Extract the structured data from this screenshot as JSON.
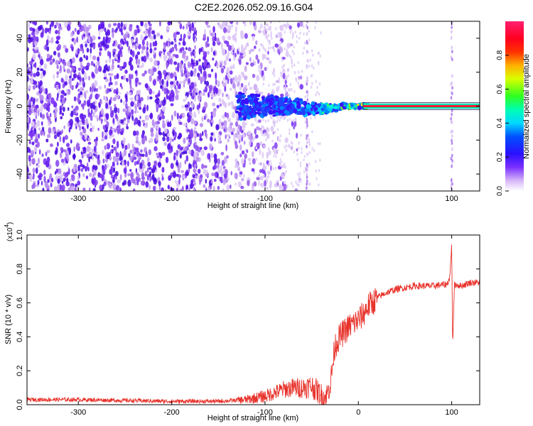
{
  "title": "C2E2.2026.052.09.16.G04",
  "chart_data": [
    {
      "type": "heatmap",
      "xlabel": "Height of straight line (km)",
      "ylabel": "Frequency (Hz)",
      "xlim": [
        -355,
        130
      ],
      "ylim": [
        -50,
        50
      ],
      "xticks": [
        -300,
        -200,
        -100,
        0,
        100
      ],
      "xtick_labels": [
        "-300",
        "-200",
        "-100",
        "0",
        "100"
      ],
      "yticks": [
        -40,
        -20,
        0,
        20,
        40
      ],
      "ytick_labels": [
        "-40",
        "-20",
        "0",
        "20",
        "40"
      ],
      "colorbar": {
        "label": "Normalized spectral amplitude",
        "range": [
          0.0,
          1.0
        ],
        "ticks": [
          0.0,
          0.2,
          0.4,
          0.6,
          0.8
        ],
        "tick_labels": [
          "0.0",
          "0.2",
          "0.4",
          "0.6",
          "0.8"
        ],
        "colormap": "rainbow (white-violet-blue-cyan-green-yellow-red-magenta)"
      },
      "features": {
        "noise_region_x": [
          -355,
          -100
        ],
        "signal_band_start_x": -125,
        "signal_line_x": [
          5,
          130
        ],
        "signal_line_y": 0,
        "secondary_spike_x": [
          -55,
          100,
          -175
        ]
      },
      "grid": false
    },
    {
      "type": "line",
      "xlabel": "Height of straight line (km)",
      "ylabel": "SNR (10 * v/v)",
      "yscale_label": "(x10",
      "yscale_exp": "4",
      "yscale_close": ")",
      "xlim": [
        -355,
        130
      ],
      "ylim": [
        0.0,
        1.0
      ],
      "xticks": [
        -300,
        -200,
        -100,
        0,
        100
      ],
      "xtick_labels": [
        "-300",
        "-200",
        "-100",
        "0",
        "100"
      ],
      "yticks": [
        0.0,
        0.2,
        0.4,
        0.6,
        0.8,
        1.0
      ],
      "ytick_labels": [
        "0.0",
        "0.2",
        "0.4",
        "0.6",
        "0.8",
        "1.0"
      ],
      "color": "#e8312a",
      "series": [
        {
          "x": [
            -355,
            -300,
            -250,
            -200,
            -150,
            -120,
            -100,
            -80,
            -70,
            -60,
            -50,
            -40,
            -35,
            -30,
            -25,
            -20,
            -15,
            -10,
            -5,
            0,
            5,
            10,
            15,
            20,
            30,
            40,
            60,
            80,
            95,
            98,
            100,
            101,
            103,
            110,
            120,
            130
          ],
          "values": [
            0.03,
            0.03,
            0.025,
            0.02,
            0.02,
            0.03,
            0.05,
            0.09,
            0.1,
            0.1,
            0.11,
            0.06,
            0.04,
            0.12,
            0.35,
            0.4,
            0.43,
            0.46,
            0.48,
            0.5,
            0.53,
            0.58,
            0.6,
            0.63,
            0.66,
            0.68,
            0.7,
            0.7,
            0.71,
            0.75,
            0.95,
            0.35,
            0.71,
            0.7,
            0.72,
            0.72
          ]
        }
      ],
      "grid": false
    }
  ]
}
